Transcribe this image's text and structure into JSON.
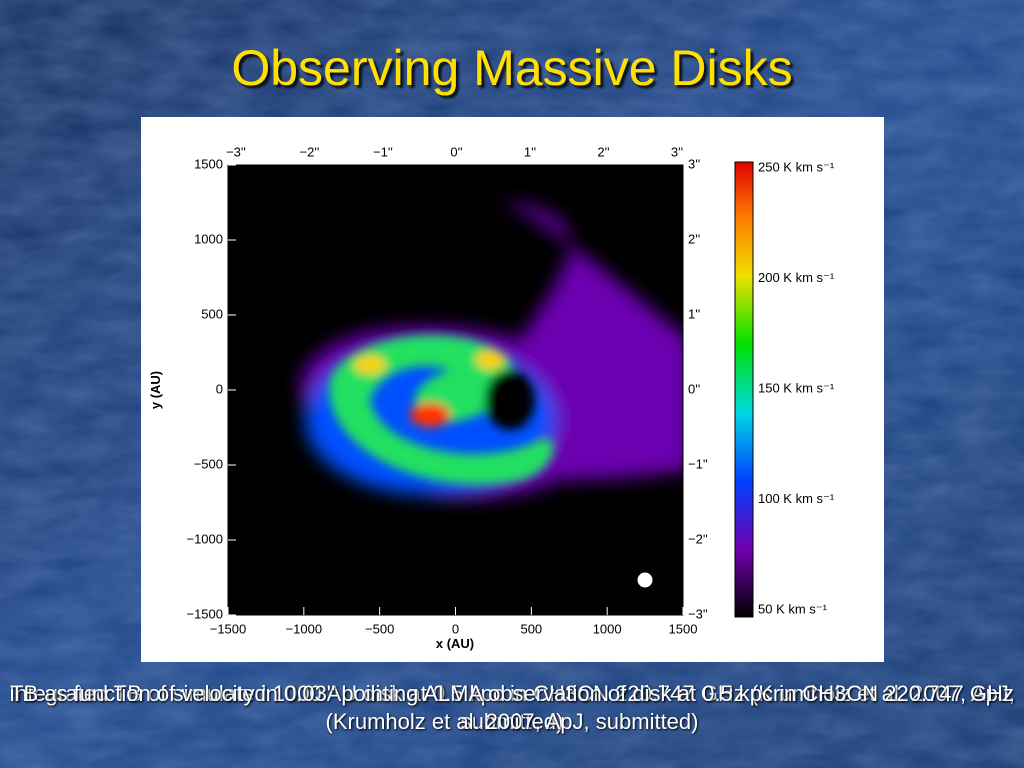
{
  "title": "Observing Massive Disks",
  "figure": {
    "y_axis_label": "y (AU)",
    "x_axis_label": "x (AU)",
    "y_ticks": [
      "1500",
      "1000",
      "500",
      "0",
      "−500",
      "−1000",
      "−1500"
    ],
    "x_ticks": [
      "−1500",
      "−1000",
      "−500",
      "0",
      "500",
      "1000",
      "1500"
    ],
    "top_ticks": [
      "−3''",
      "−2''",
      "−1''",
      "0''",
      "1''",
      "2''",
      "3''"
    ],
    "right_ticks": [
      "3''",
      "2''",
      "1''",
      "0''",
      "−1''",
      "−2''",
      "−3''"
    ],
    "colorbar_labels": [
      "250 K km s⁻¹",
      "200 K km s⁻¹",
      "150 K km s⁻¹",
      "100 K km s⁻¹",
      "50 K km s⁻¹"
    ]
  },
  "captions": [
    "Integrated TB of simulated 1000 AU disk at 0.5 kpc in CH3CN 220.747 GHz (Krumholz et al. 2007, ApJ, submitted)",
    "TB as function of velocity in 0.03'' pointing ALMA observation of disk at 0.5 kpc in CH3CN 220.747 GHz (Krumholz et al. 2007, ApJ, submitted)"
  ]
}
